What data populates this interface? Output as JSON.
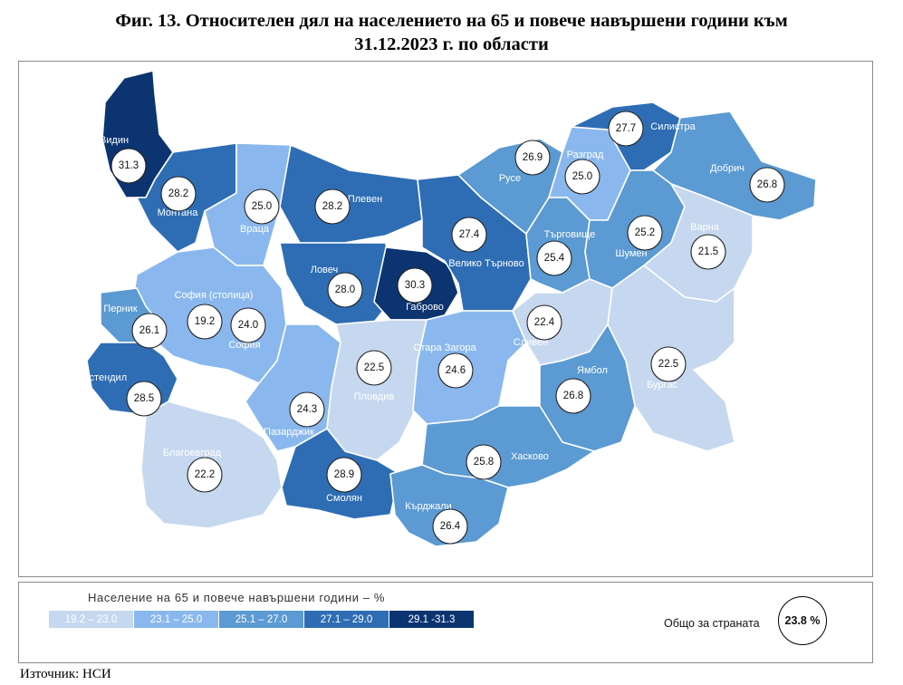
{
  "title": {
    "line1": "Фиг. 13. Относителен дял на населението на 65 и повече навършени години към",
    "line2": "31.12.2023 г. по области"
  },
  "colors": {
    "class1": "#c6d8ef",
    "class2": "#8ab8ee",
    "class3": "#5b9ad2",
    "class4": "#2e6db4",
    "class5": "#0b3470",
    "white": "#ffffff"
  },
  "regions": [
    {
      "name": "Видин",
      "value": "31.3",
      "class": 5
    },
    {
      "name": "Монтана",
      "value": "28.2",
      "class": 4
    },
    {
      "name": "Враца",
      "value": "25.0",
      "class": 2
    },
    {
      "name": "Плевен",
      "value": "28.2",
      "class": 4
    },
    {
      "name": "Ловеч",
      "value": "28.0",
      "class": 4
    },
    {
      "name": "Габрово",
      "value": "30.3",
      "class": 5
    },
    {
      "name": "Велико Търново",
      "value": "27.4",
      "class": 4
    },
    {
      "name": "Русе",
      "value": "26.9",
      "class": 3
    },
    {
      "name": "Разград",
      "value": "25.0",
      "class": 2
    },
    {
      "name": "Силистра",
      "value": "27.7",
      "class": 4
    },
    {
      "name": "Добрич",
      "value": "26.8",
      "class": 3
    },
    {
      "name": "Търговище",
      "value": "25.4",
      "class": 3
    },
    {
      "name": "Шумен",
      "value": "25.2",
      "class": 3
    },
    {
      "name": "Варна",
      "value": "21.5",
      "class": 1
    },
    {
      "name": "София (столица)",
      "value": "19.2",
      "class": 1
    },
    {
      "name": "София",
      "value": "24.0",
      "class": 2
    },
    {
      "name": "Перник",
      "value": "26.1",
      "class": 3
    },
    {
      "name": "Кюстендил",
      "value": "28.5",
      "class": 4
    },
    {
      "name": "Благоевград",
      "value": "22.2",
      "class": 1
    },
    {
      "name": "Пазарджик",
      "value": "24.3",
      "class": 2
    },
    {
      "name": "Пловдив",
      "value": "22.5",
      "class": 1
    },
    {
      "name": "Стара Загора",
      "value": "24.6",
      "class": 2
    },
    {
      "name": "Сливен",
      "value": "22.4",
      "class": 1
    },
    {
      "name": "Ямбол",
      "value": "26.8",
      "class": 3
    },
    {
      "name": "Бургас",
      "value": "22.5",
      "class": 1
    },
    {
      "name": "Хасково",
      "value": "25.8",
      "class": 3
    },
    {
      "name": "Смолян",
      "value": "28.9",
      "class": 4
    },
    {
      "name": "Кърджали",
      "value": "26.4",
      "class": 3
    }
  ],
  "legend": {
    "title": "Население на 65 и повече навършени години – %",
    "classes": [
      {
        "label": "19.2 – 23.0",
        "color": "#c6d8ef"
      },
      {
        "label": "23.1 – 25.0",
        "color": "#8ab8ee"
      },
      {
        "label": "25.1 – 27.0",
        "color": "#5b9ad2"
      },
      {
        "label": "27.1 – 29.0",
        "color": "#2e6db4"
      },
      {
        "label": "29.1 -31.3",
        "color": "#0b3470"
      }
    ]
  },
  "total": {
    "label": "Общо за страната",
    "value": "23.8 %"
  },
  "source": "Източник: НСИ"
}
